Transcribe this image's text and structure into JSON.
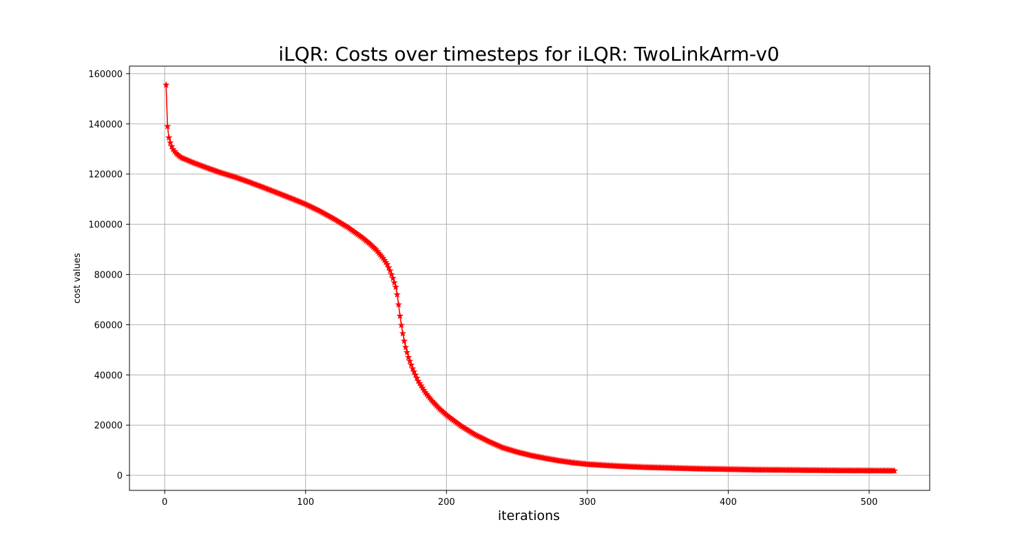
{
  "chart_data": {
    "type": "line",
    "title": "iLQR: Costs over timesteps for iLQR: TwoLinkArm-v0",
    "xlabel": "iterations",
    "ylabel": "cost values",
    "xlim": [
      -25,
      543
    ],
    "ylim": [
      -6000,
      163000
    ],
    "xticks": [
      0,
      100,
      200,
      300,
      400,
      500
    ],
    "yticks": [
      0,
      20000,
      40000,
      60000,
      80000,
      100000,
      120000,
      140000,
      160000
    ],
    "grid": true,
    "series": [
      {
        "color": "#ff0000",
        "marker": "star",
        "x_start": 1,
        "x_end": 518,
        "anchor_x": [
          1,
          2,
          3,
          4,
          5,
          6,
          8,
          10,
          12,
          15,
          20,
          30,
          40,
          50,
          60,
          70,
          80,
          90,
          100,
          110,
          120,
          130,
          140,
          145,
          150,
          155,
          158,
          160,
          162,
          164,
          165,
          166,
          167,
          168,
          169,
          170,
          171,
          172,
          173,
          174,
          175,
          176,
          178,
          180,
          185,
          190,
          195,
          200,
          210,
          220,
          230,
          240,
          250,
          260,
          270,
          280,
          290,
          300,
          320,
          340,
          360,
          380,
          400,
          420,
          440,
          460,
          480,
          500,
          518
        ],
        "anchor_y": [
          155500,
          139000,
          134500,
          132500,
          131000,
          129800,
          128300,
          127300,
          126500,
          125800,
          124600,
          122500,
          120500,
          118800,
          116800,
          114700,
          112500,
          110300,
          108000,
          105300,
          102200,
          98800,
          94800,
          92500,
          89900,
          86500,
          84000,
          81500,
          78500,
          75000,
          72000,
          68000,
          63500,
          59800,
          56500,
          53500,
          51000,
          49000,
          47000,
          45500,
          44000,
          42500,
          40000,
          37500,
          33000,
          29500,
          26500,
          24000,
          19800,
          16300,
          13500,
          11000,
          9300,
          7900,
          6800,
          5800,
          5000,
          4400,
          3700,
          3200,
          2900,
          2600,
          2400,
          2200,
          2100,
          2000,
          1900,
          1850,
          1800
        ]
      }
    ]
  }
}
